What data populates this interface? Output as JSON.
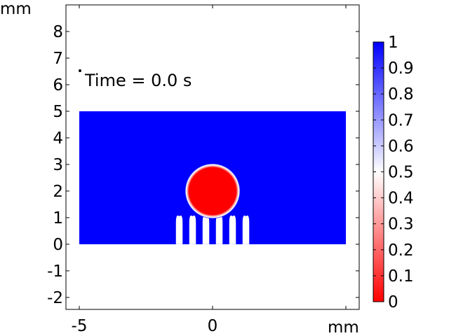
{
  "chart_data": {
    "type": "heatmap",
    "title": "",
    "annotation": "Time = 0.0 s",
    "x_unit": "mm",
    "y_unit": "mm",
    "xlim": [
      -5.5,
      5.5
    ],
    "ylim": [
      -2.45,
      9.0
    ],
    "x_ticks": [
      -5,
      0
    ],
    "x_tick_labels": [
      "-5",
      "0"
    ],
    "y_ticks": [
      -2,
      -1,
      0,
      1,
      2,
      3,
      4,
      5,
      6,
      7,
      8
    ],
    "y_tick_labels": [
      "-2",
      "-1",
      "0",
      "1",
      "2",
      "3",
      "4",
      "5",
      "6",
      "7",
      "8"
    ],
    "domain": {
      "x": [
        -5,
        5
      ],
      "y": [
        0,
        5
      ],
      "value": 1
    },
    "droplet": {
      "cx": 0,
      "cy": 2,
      "r": 1,
      "value": 0
    },
    "micro_pillars": {
      "x_centers": [
        -1.25,
        -0.75,
        -0.25,
        0.25,
        0.75,
        1.25
      ],
      "width": 0.25,
      "height": 1.05,
      "value": 0.5
    },
    "colorbar": {
      "min": 0,
      "max": 1,
      "ticks": [
        1,
        0.9,
        0.8,
        0.7,
        0.6,
        0.5,
        0.4,
        0.3,
        0.2,
        0.1,
        0
      ],
      "tick_labels": [
        "1",
        "0.9",
        "0.8",
        "0.7",
        "0.6",
        "0.5",
        "0.4",
        "0.3",
        "0.2",
        "0.1",
        "0"
      ],
      "colors": {
        "low": "#ff0000",
        "mid": "#ffffff",
        "high": "#0000ff"
      }
    },
    "grid": false
  }
}
